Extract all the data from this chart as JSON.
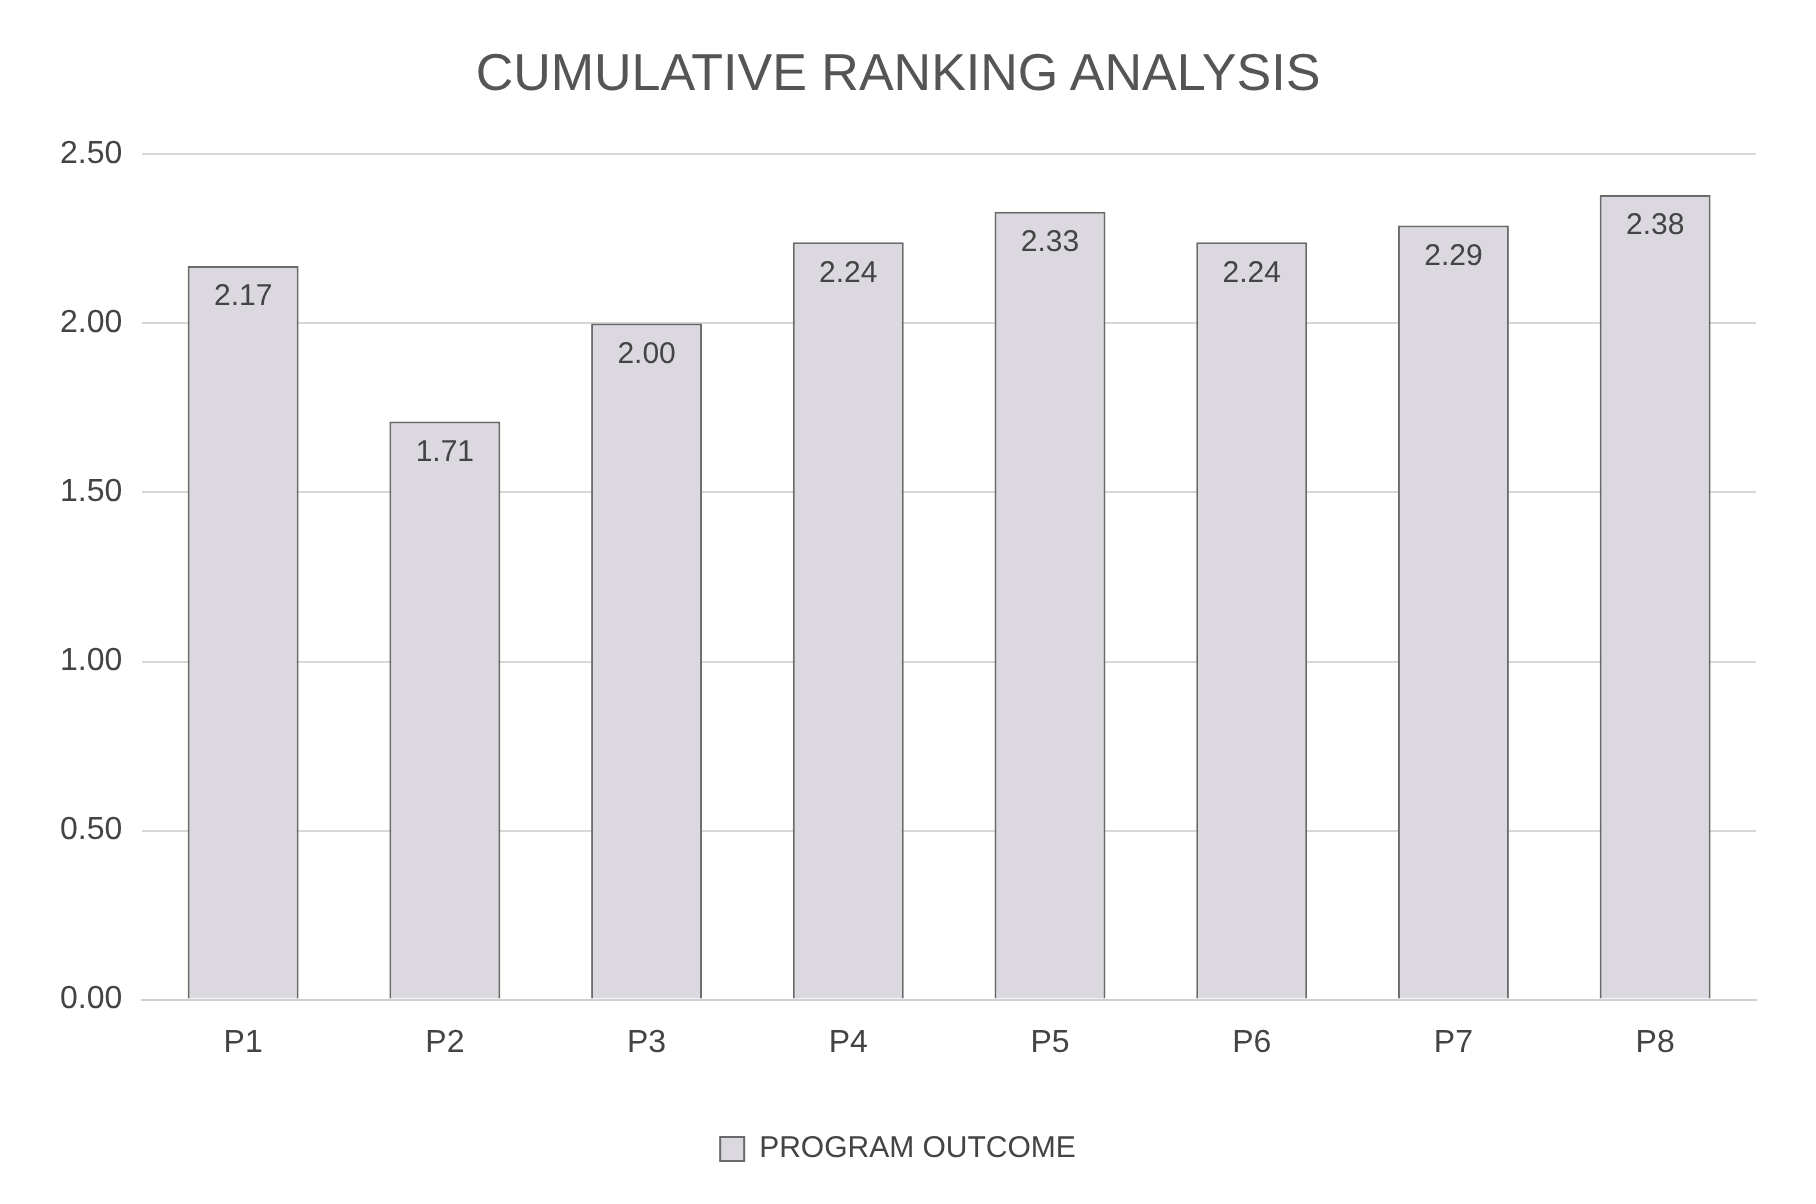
{
  "chart_data": {
    "type": "bar",
    "title": "CUMULATIVE RANKING ANALYSIS",
    "categories": [
      "P1",
      "P2",
      "P3",
      "P4",
      "P5",
      "P6",
      "P7",
      "P8"
    ],
    "series": [
      {
        "name": "PROGRAM OUTCOME",
        "color": "#dcd8e0",
        "values": [
          2.17,
          1.71,
          2.0,
          2.24,
          2.33,
          2.24,
          2.29,
          2.38
        ],
        "value_labels": [
          "2.17",
          "1.71",
          "2.00",
          "2.24",
          "2.33",
          "2.24",
          "2.29",
          "2.38"
        ]
      }
    ],
    "ylim": [
      0,
      2.5
    ],
    "yticks": [
      {
        "value": 0,
        "label": "0.00"
      },
      {
        "value": 0.5,
        "label": "0.50"
      },
      {
        "value": 1,
        "label": "1.00"
      },
      {
        "value": 1.5,
        "label": "1.50"
      },
      {
        "value": 2,
        "label": "2.00"
      },
      {
        "value": 2.5,
        "label": "2.50"
      }
    ],
    "grid": "y",
    "legend": "bottom"
  }
}
